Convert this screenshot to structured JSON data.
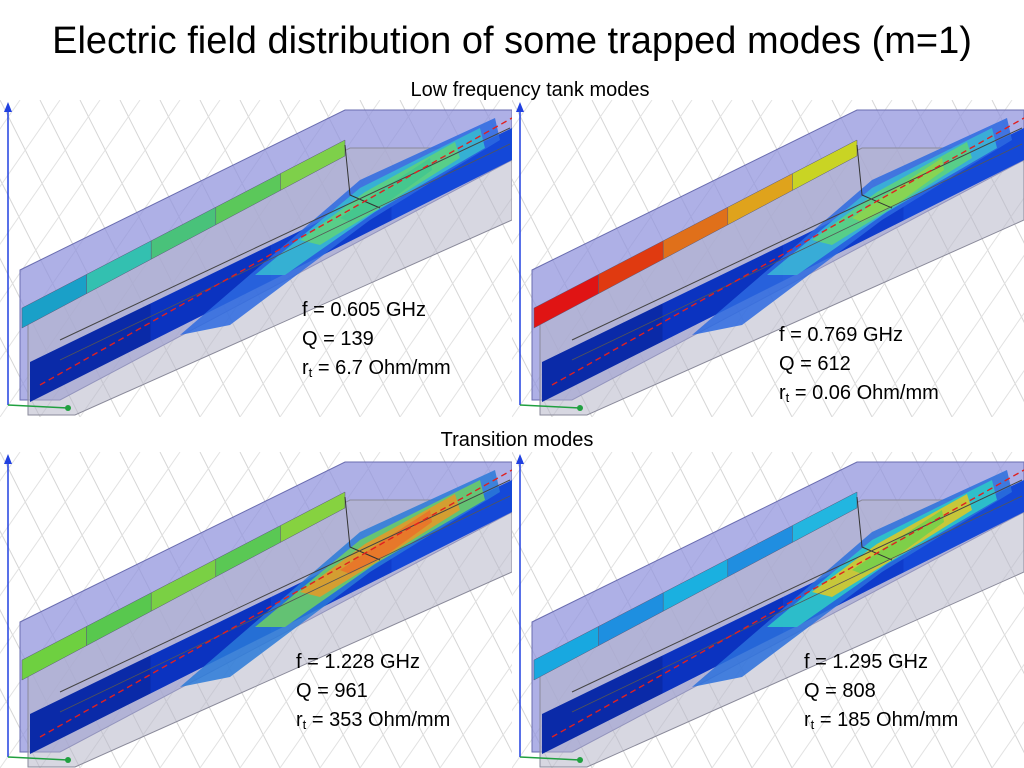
{
  "slide": {
    "title": "Electric field distribution of some trapped modes (m=1)",
    "section_low": "Low frequency tank modes",
    "section_transition": "Transition modes"
  },
  "panels": [
    {
      "position": "top-left",
      "f_text": "f = 0.605 GHz",
      "q_text": "Q = 139",
      "r_sym": "r",
      "r_sub": "t",
      "r_rest": " = 6.7 Ohm/mm",
      "stripe_colors": [
        "#1aa0c8",
        "#33c0b0",
        "#49c27a",
        "#5bc85a",
        "#7ed04a"
      ],
      "base_colors": [
        "#0a2aa8",
        "#0b33c0",
        "#0f3ccc",
        "#1448d8"
      ],
      "taper_colors": [
        "#2d6ae0",
        "#36b8d2",
        "#5cd280",
        "#45c68e"
      ]
    },
    {
      "position": "top-right",
      "f_text": "f = 0.769 GHz",
      "q_text": "Q = 612",
      "r_sym": "r",
      "r_sub": "t",
      "r_rest": " = 0.06 Ohm/mm",
      "stripe_colors": [
        "#e01414",
        "#e03a10",
        "#e0701a",
        "#dfa31c",
        "#c9d424"
      ],
      "base_colors": [
        "#0a2aa8",
        "#0b33c0",
        "#0f3ccc",
        "#1448d8"
      ],
      "taper_colors": [
        "#2d6ae0",
        "#3ab4d6",
        "#5cd280",
        "#8ad450"
      ]
    },
    {
      "position": "bottom-left",
      "f_text": "f = 1.228 GHz",
      "q_text": "Q = 961",
      "r_sym": "r",
      "r_sub": "t",
      "r_rest": " = 353 Ohm/mm",
      "stripe_colors": [
        "#6ed040",
        "#58c84e",
        "#7ad044",
        "#5ac854",
        "#86d240"
      ],
      "base_colors": [
        "#0a2aa8",
        "#0b33c0",
        "#0f3ccc",
        "#1448d8"
      ],
      "taper_colors": [
        "#2a7ad8",
        "#6acb68",
        "#e09a2a",
        "#e8762a"
      ]
    },
    {
      "position": "bottom-right",
      "f_text": "f = 1.295 GHz",
      "q_text": "Q = 808",
      "r_sym": "r",
      "r_sub": "t",
      "r_rest": " = 185 Ohm/mm",
      "stripe_colors": [
        "#18a8e0",
        "#1e8fe0",
        "#1ab0e0",
        "#208ee0",
        "#22b6e0"
      ],
      "base_colors": [
        "#0a2aa8",
        "#0b33c0",
        "#0f3ccc",
        "#1448d8"
      ],
      "taper_colors": [
        "#2a70dc",
        "#2ec6c8",
        "#d8c82a",
        "#7ad04a"
      ]
    }
  ]
}
